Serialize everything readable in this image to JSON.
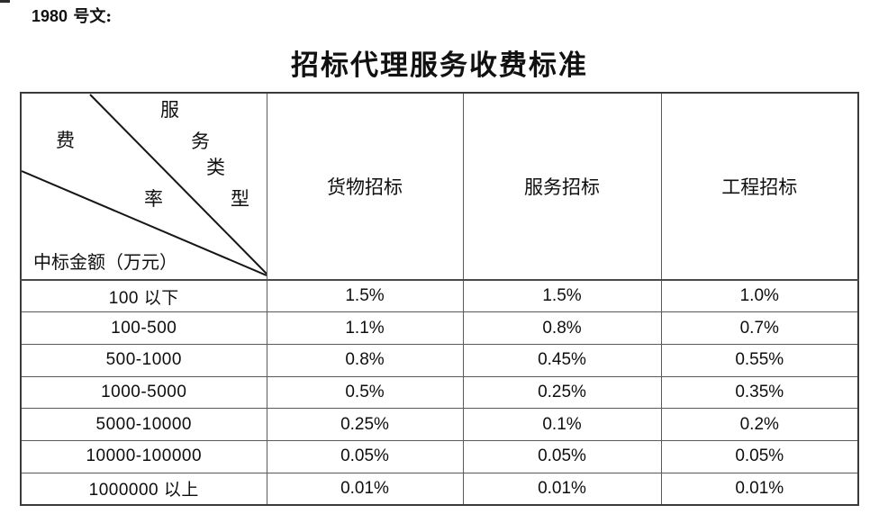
{
  "doc": {
    "number": "1980",
    "suffix": " 号文:"
  },
  "title": "招标代理服务收费标准",
  "table": {
    "corner": {
      "diag_top": [
        "服",
        "务",
        "类",
        "型"
      ],
      "diag_mid": [
        "费",
        "率"
      ],
      "bottom": "中标金额（万元）"
    },
    "columns": [
      "货物招标",
      "服务招标",
      "工程招标"
    ],
    "rows": [
      {
        "range": "100 以下",
        "values": [
          "1.5%",
          "1.5%",
          "1.0%"
        ]
      },
      {
        "range": "100-500",
        "values": [
          "1.1%",
          "0.8%",
          "0.7%"
        ]
      },
      {
        "range": "500-1000",
        "values": [
          "0.8%",
          "0.45%",
          "0.55%"
        ]
      },
      {
        "range": "1000-5000",
        "values": [
          "0.5%",
          "0.25%",
          "0.35%"
        ]
      },
      {
        "range": "5000-10000",
        "values": [
          "0.25%",
          "0.1%",
          "0.2%"
        ]
      },
      {
        "range": "10000-100000",
        "values": [
          "0.05%",
          "0.05%",
          "0.05%"
        ]
      },
      {
        "range": "1000000 以上",
        "values": [
          "0.01%",
          "0.01%",
          "0.01%"
        ]
      }
    ]
  },
  "colors": {
    "ink": "#111111",
    "grid": "#5a5a5a",
    "diagonal": "#161616",
    "background": "#ffffff"
  }
}
